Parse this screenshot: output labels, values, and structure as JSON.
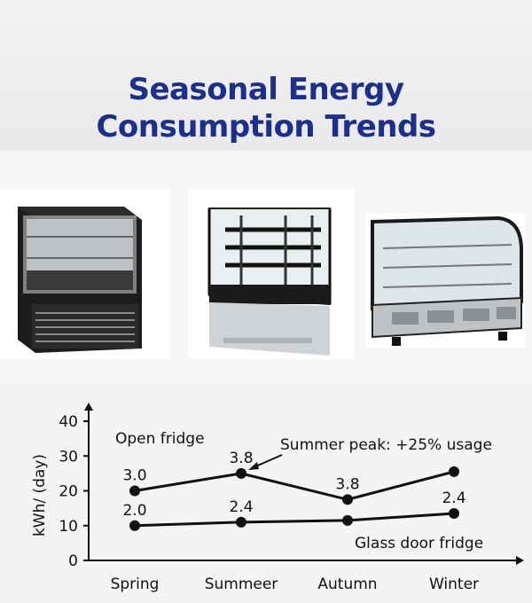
{
  "title": "Seasonal Energy\nConsumption Trends",
  "photos": [
    {
      "name": "open fridge photo"
    },
    {
      "name": "tall display fridge photo"
    },
    {
      "name": "curved glass countertop fridge photo"
    }
  ],
  "chart_data": {
    "type": "line",
    "title": "",
    "xlabel": "",
    "ylabel": "kWh/ (day)",
    "ylim": [
      0,
      40
    ],
    "yticks": [
      0,
      10,
      20,
      30,
      40
    ],
    "grid": false,
    "categories": [
      "Spring",
      "Summeer",
      "Autumn",
      "Winter"
    ],
    "series": [
      {
        "name": "Open fridge",
        "values": [
          20,
          25,
          17.5,
          25.5
        ],
        "labels": [
          "3.0",
          "3.8",
          "3.8",
          ""
        ],
        "color": "#111111"
      },
      {
        "name": "Glass door fridge",
        "values": [
          10,
          11,
          11.5,
          13.5
        ],
        "labels": [
          "2.0",
          "2.4",
          "",
          "2.4"
        ],
        "color": "#111111"
      }
    ],
    "annotations": [
      {
        "text": "Summer peak: +25% usage"
      }
    ]
  }
}
